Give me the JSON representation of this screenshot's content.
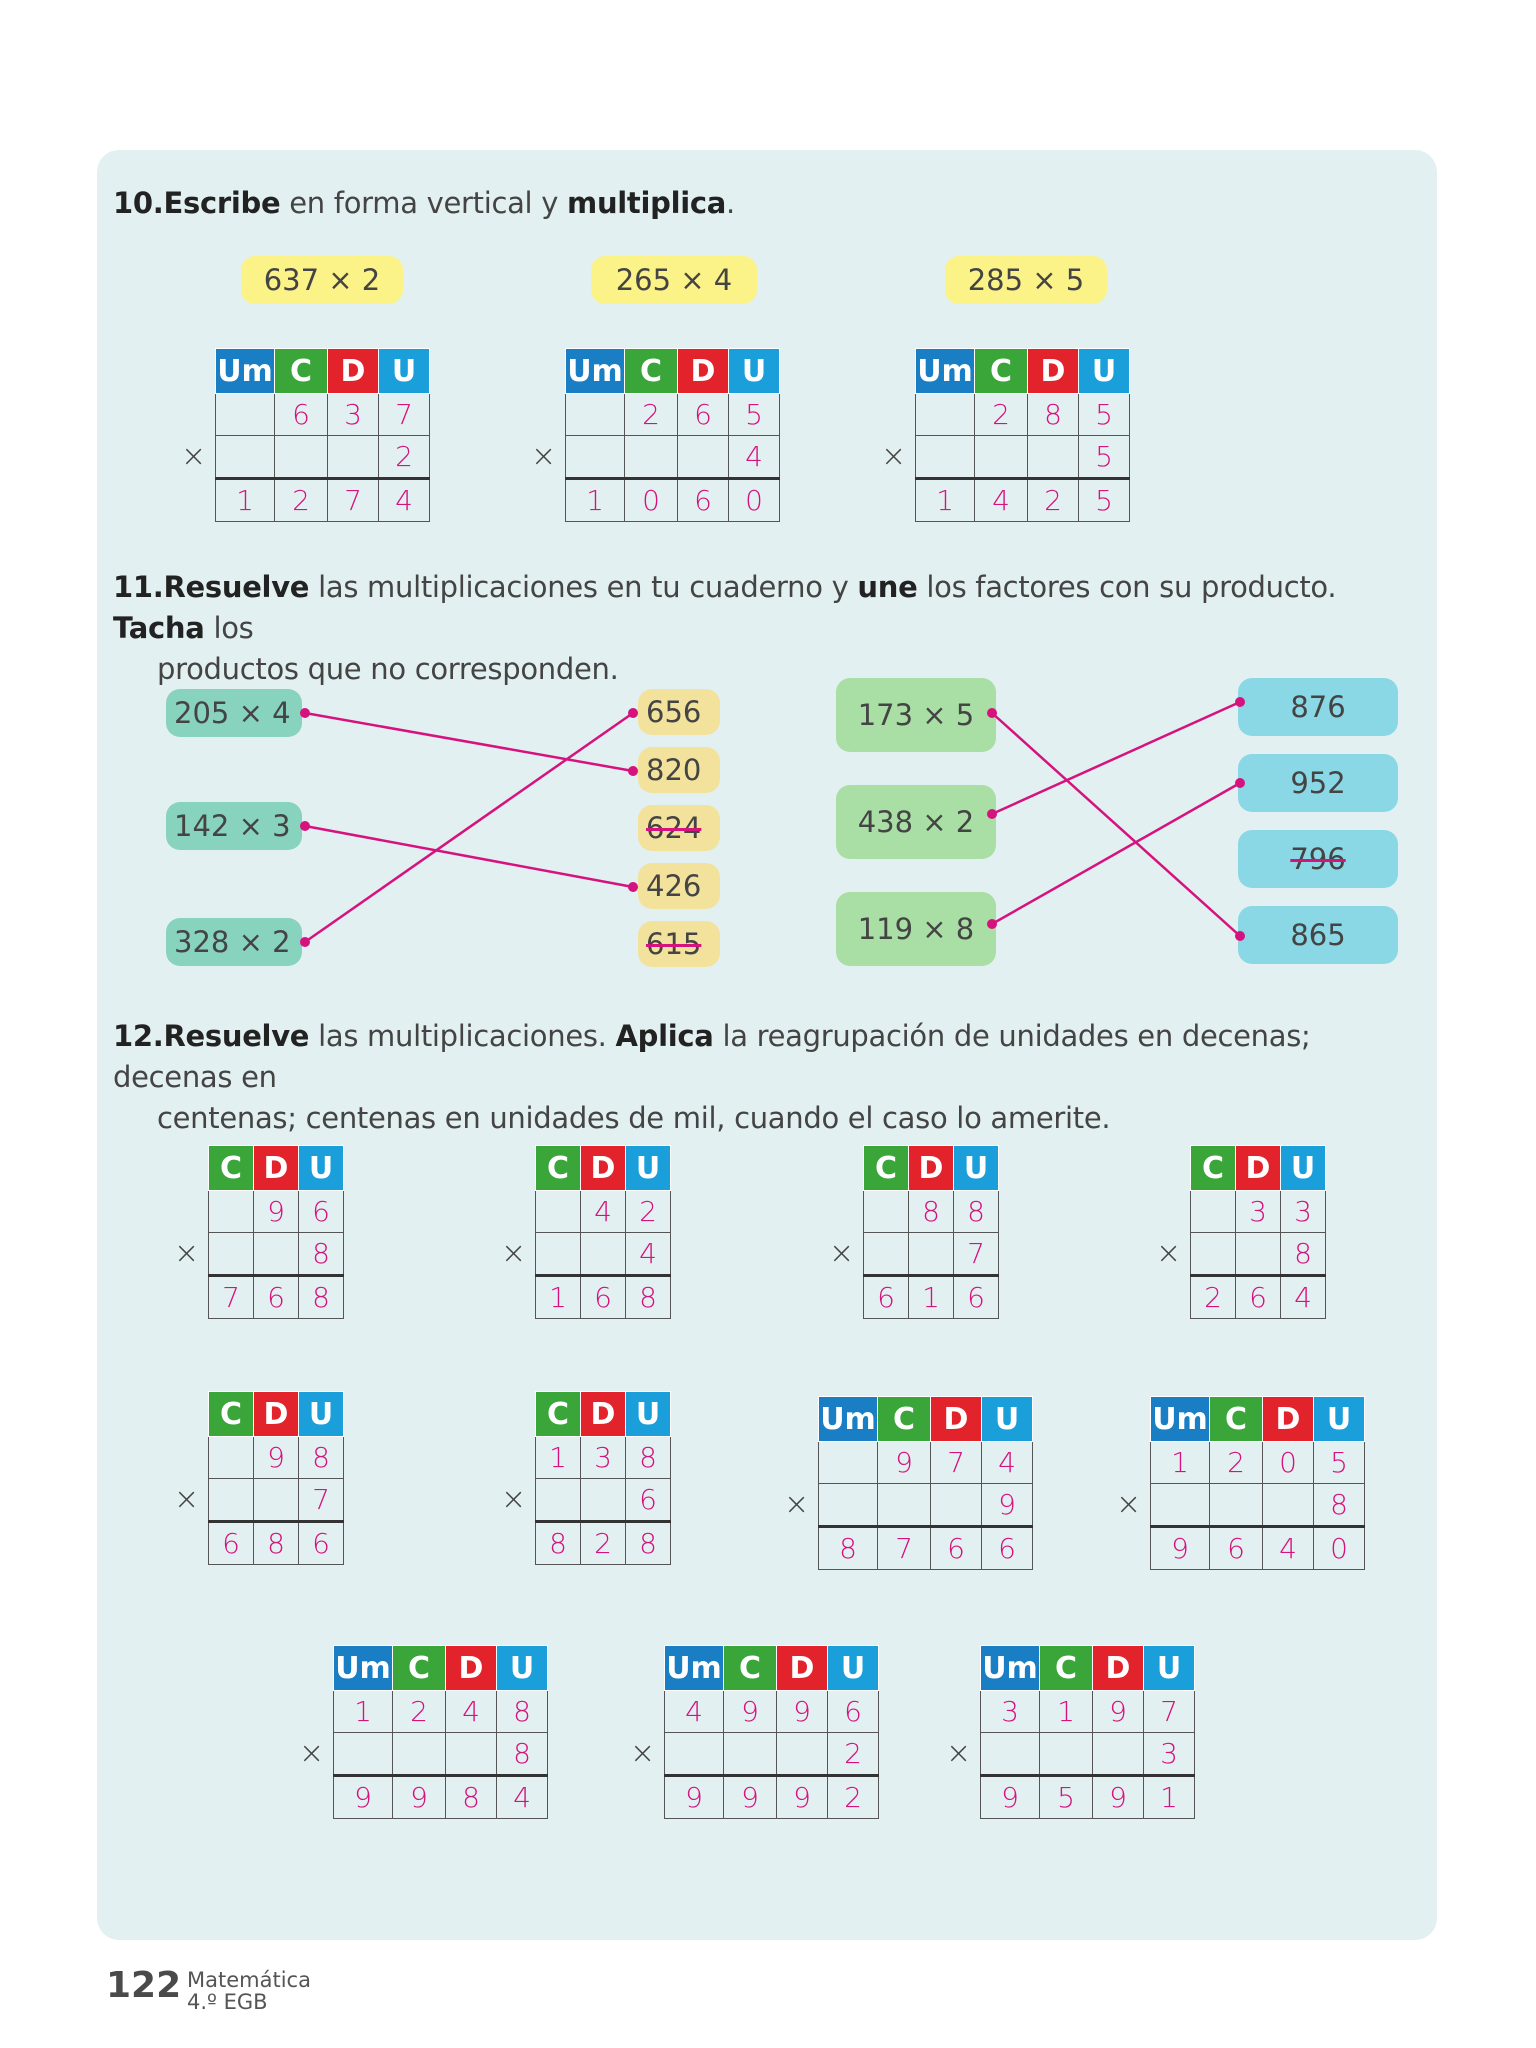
{
  "ex10": {
    "num": "10.",
    "w1": "Escribe",
    "t1": " en forma vertical y ",
    "w2": "multiplica",
    "t2": ".",
    "tasks": [
      {
        "label": "637 × 2",
        "cols": [
          "Um",
          "C",
          "D",
          "U"
        ],
        "top": [
          "",
          "6",
          "3",
          "7"
        ],
        "mult": [
          "",
          "",
          "",
          "2"
        ],
        "result": [
          "1",
          "2",
          "7",
          "4"
        ]
      },
      {
        "label": "265 × 4",
        "cols": [
          "Um",
          "C",
          "D",
          "U"
        ],
        "top": [
          "",
          "2",
          "6",
          "5"
        ],
        "mult": [
          "",
          "",
          "",
          "4"
        ],
        "result": [
          "1",
          "0",
          "6",
          "0"
        ]
      },
      {
        "label": "285 × 5",
        "cols": [
          "Um",
          "C",
          "D",
          "U"
        ],
        "top": [
          "",
          "2",
          "8",
          "5"
        ],
        "mult": [
          "",
          "",
          "",
          "5"
        ],
        "result": [
          "1",
          "4",
          "2",
          "5"
        ]
      }
    ]
  },
  "ex11": {
    "num": "11.",
    "w1": "Resuelve",
    "t1": " las multiplicaciones en tu cuaderno y ",
    "w2": "une",
    "t2": " los factores con su producto. ",
    "w3": "Tacha",
    "t3": " los",
    "line2": "productos que no corresponden.",
    "left_factors": [
      "205 × 4",
      "142 × 3",
      "328 × 2"
    ],
    "left_products": [
      {
        "value": "656",
        "crossed": false
      },
      {
        "value": "820",
        "crossed": false
      },
      {
        "value": "624",
        "crossed": true
      },
      {
        "value": "426",
        "crossed": false
      },
      {
        "value": "615",
        "crossed": true
      }
    ],
    "right_factors": [
      "173 × 5",
      "438 × 2",
      "119 × 8"
    ],
    "right_products": [
      {
        "value": "876",
        "crossed": false
      },
      {
        "value": "952",
        "crossed": false
      },
      {
        "value": "796",
        "crossed": true
      },
      {
        "value": "865",
        "crossed": false
      }
    ],
    "line_color": "#d6127e"
  },
  "ex12": {
    "num": "12.",
    "w1": "Resuelve",
    "t1": " las multiplicaciones. ",
    "w2": "Aplica",
    "t2": " la reagrupación de unidades en decenas; decenas en",
    "line2": "centenas; centenas en unidades de mil, cuando el caso lo amerite.",
    "row1": [
      {
        "cols": [
          "C",
          "D",
          "U"
        ],
        "top": [
          "",
          "9",
          "6"
        ],
        "mult": [
          "",
          "",
          "8"
        ],
        "result": [
          "7",
          "6",
          "8"
        ]
      },
      {
        "cols": [
          "C",
          "D",
          "U"
        ],
        "top": [
          "",
          "4",
          "2"
        ],
        "mult": [
          "",
          "",
          "4"
        ],
        "result": [
          "1",
          "6",
          "8"
        ]
      },
      {
        "cols": [
          "C",
          "D",
          "U"
        ],
        "top": [
          "",
          "8",
          "8"
        ],
        "mult": [
          "",
          "",
          "7"
        ],
        "result": [
          "6",
          "1",
          "6"
        ]
      },
      {
        "cols": [
          "C",
          "D",
          "U"
        ],
        "top": [
          "",
          "3",
          "3"
        ],
        "mult": [
          "",
          "",
          "8"
        ],
        "result": [
          "2",
          "6",
          "4"
        ]
      }
    ],
    "row2": [
      {
        "cols": [
          "C",
          "D",
          "U"
        ],
        "top": [
          "",
          "9",
          "8"
        ],
        "mult": [
          "",
          "",
          "7"
        ],
        "result": [
          "6",
          "8",
          "6"
        ]
      },
      {
        "cols": [
          "C",
          "D",
          "U"
        ],
        "top": [
          "1",
          "3",
          "8"
        ],
        "mult": [
          "",
          "",
          "6"
        ],
        "result": [
          "8",
          "2",
          "8"
        ]
      },
      {
        "cols": [
          "Um",
          "C",
          "D",
          "U"
        ],
        "top": [
          "",
          "9",
          "7",
          "4"
        ],
        "mult": [
          "",
          "",
          "",
          "9"
        ],
        "result": [
          "8",
          "7",
          "6",
          "6"
        ]
      },
      {
        "cols": [
          "Um",
          "C",
          "D",
          "U"
        ],
        "top": [
          "1",
          "2",
          "0",
          "5"
        ],
        "mult": [
          "",
          "",
          "",
          "8"
        ],
        "result": [
          "9",
          "6",
          "4",
          "0"
        ]
      }
    ],
    "row3": [
      {
        "cols": [
          "Um",
          "C",
          "D",
          "U"
        ],
        "top": [
          "1",
          "2",
          "4",
          "8"
        ],
        "mult": [
          "",
          "",
          "",
          "8"
        ],
        "result": [
          "9",
          "9",
          "8",
          "4"
        ]
      },
      {
        "cols": [
          "Um",
          "C",
          "D",
          "U"
        ],
        "top": [
          "4",
          "9",
          "9",
          "6"
        ],
        "mult": [
          "",
          "",
          "",
          "2"
        ],
        "result": [
          "9",
          "9",
          "9",
          "2"
        ]
      },
      {
        "cols": [
          "Um",
          "C",
          "D",
          "U"
        ],
        "top": [
          "3",
          "1",
          "9",
          "7"
        ],
        "mult": [
          "",
          "",
          "",
          "3"
        ],
        "result": [
          "9",
          "5",
          "9",
          "1"
        ]
      }
    ]
  },
  "times_sign": "×",
  "footer": {
    "page": "122",
    "subject": "Matemática",
    "grade": "4.º EGB"
  },
  "colors": {
    "Um": "#1a7ec4",
    "C": "#3aa63a",
    "D": "#e3232b",
    "U": "#1a9fdb",
    "answer": "#d6127e",
    "panel": "#e3f0f1"
  }
}
